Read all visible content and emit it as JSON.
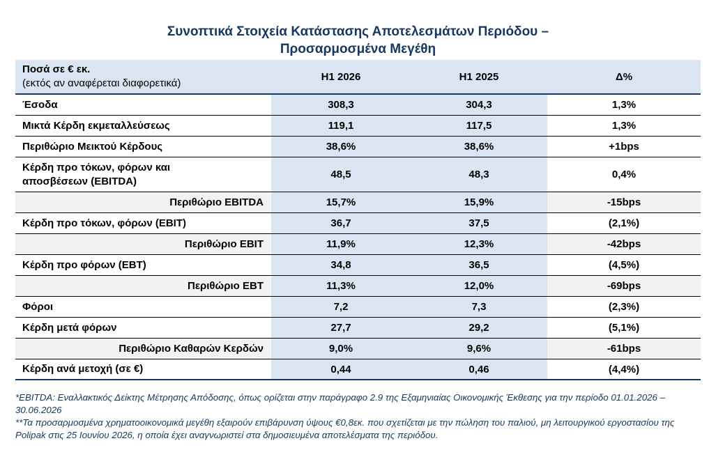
{
  "title": {
    "line1": "Συνοπτικά Στοιχεία Κατάστασης Αποτελεσμάτων Περιόδου –",
    "line2": "Προσαρμοσμένα Μεγέθη"
  },
  "table": {
    "header": {
      "label_line1": "Ποσά σε € εκ.",
      "label_line2": "(εκτός αν αναφέρεται διαφορετικά)",
      "col_h1_2026": "H1 2026",
      "col_h1_2025": "H1 2025",
      "col_delta": "Δ%"
    },
    "rows": [
      {
        "label": "Έσοδα",
        "h1_2026": "308,3",
        "h1_2025": "304,3",
        "delta": "1,3%"
      },
      {
        "label": "Μικτά Κέρδη εκμεταλλεύσεως",
        "h1_2026": "119,1",
        "h1_2025": "117,5",
        "delta": "1,3%"
      },
      {
        "label": "Περιθώριο Μεικτού Κέρδους",
        "h1_2026": "38,6%",
        "h1_2025": "38,6%",
        "delta": "+1bps"
      },
      {
        "label": "Κέρδη προ τόκων, φόρων και αποσβέσεων (EBITDA)",
        "h1_2026": "48,5",
        "h1_2025": "48,3",
        "delta": "0,4%"
      },
      {
        "label": "Περιθώριο EBITDA",
        "h1_2026": "15,7%",
        "h1_2025": "15,9%",
        "delta": "-15bps"
      },
      {
        "label": "Κέρδη προ τόκων, φόρων (EBIT)",
        "h1_2026": "36,7",
        "h1_2025": "37,5",
        "delta": "(2,1%)"
      },
      {
        "label": "Περιθώριο EBIT",
        "h1_2026": "11,9%",
        "h1_2025": "12,3%",
        "delta": "-42bps"
      },
      {
        "label": "Κέρδη προ φόρων (EBT)",
        "h1_2026": "34,8",
        "h1_2025": "36,5",
        "delta": "(4,5%)"
      },
      {
        "label": "Περιθώριο EBT",
        "h1_2026": "11,3%",
        "h1_2025": "12,0%",
        "delta": "-69bps"
      },
      {
        "label": "Φόροι",
        "h1_2026": "7,2",
        "h1_2025": "7,3",
        "delta": "(2,3%)"
      },
      {
        "label": "Κέρδη μετά φόρων",
        "h1_2026": "27,7",
        "h1_2025": "29,2",
        "delta": "(5,1%)"
      },
      {
        "label": "Περιθώριο Καθαρών Κερδών",
        "h1_2026": "9,0%",
        "h1_2025": "9,6%",
        "delta": "-61bps"
      },
      {
        "label": "Κέρδη ανά μετοχή (σε €)",
        "h1_2026": "0,44",
        "h1_2025": "0,46",
        "delta": "(4,4%)"
      }
    ]
  },
  "footnotes": {
    "note1": "*EBITDA: Εναλλακτικός Δείκτης Μέτρησης Απόδοσης, όπως ορίζεται στην παράγραφο 2.9 της Εξαμηνιαίας Οικονομικής Έκθεσης για την περίοδο 01.01.2026 – 30.06.2026",
    "note2": "**Τα προσαρμοσμένα χρηματοοικονομικά μεγέθη εξαιρούν επιβάρυνση ύψους €0,8εκ. που σχετίζεται με την πώληση του παλιού, μη λειτουργικού εργοστασίου της Polipak στις 25 Ιουνίου 2026, η οποία έχει αναγνωριστεί στα δημοσιευμένα αποτελέσματα της περιόδου."
  },
  "colors": {
    "title": "#17375e",
    "header_fill": "#dbe5f1",
    "margin_row_fill": "#f2f2f2",
    "footnote_text": "#17375e"
  }
}
